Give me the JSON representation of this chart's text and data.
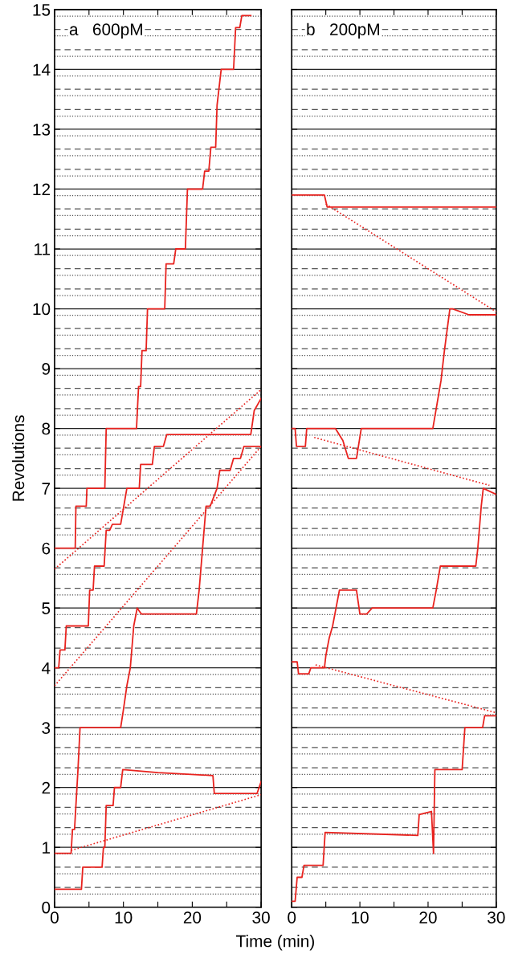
{
  "chart_data": [
    {
      "type": "line",
      "title": "a   600pM",
      "xlabel": "Time (min)",
      "ylabel": "Revolutions",
      "xlim": [
        0,
        30
      ],
      "ylim": [
        0,
        15
      ],
      "xticks": [
        0,
        {
          "value": 5,
          "label": null
        },
        10,
        {
          "value": 15,
          "label": null
        },
        20,
        {
          "value": 25,
          "label": null
        },
        30
      ],
      "yticks": [
        0,
        1,
        2,
        3,
        4,
        5,
        6,
        7,
        8,
        9,
        10,
        11,
        12,
        13,
        14,
        15
      ],
      "grid": "y",
      "line_style": "solid",
      "marker": "none",
      "series": [
        {
          "color": "#e8231f",
          "x": [
            0,
            3.0,
            3.1,
            4.6,
            4.7,
            7.3,
            7.5,
            11.9,
            12.2,
            12.5,
            12.7,
            13.3,
            13.5,
            16.0,
            16.2,
            17.3,
            17.6,
            19.0,
            19.3,
            21.5,
            21.8,
            22.4,
            22.7,
            23.4,
            23.6,
            24.2,
            26.0,
            26.3,
            26.9,
            27.2,
            28.5
          ],
          "values": [
            6.0,
            6.0,
            6.7,
            6.7,
            7.0,
            7.0,
            8.0,
            8.0,
            8.7,
            8.7,
            9.3,
            9.3,
            10.0,
            10.0,
            10.75,
            10.75,
            11.0,
            11.0,
            12.0,
            12.0,
            12.3,
            12.3,
            12.7,
            12.7,
            13.4,
            14.0,
            14.0,
            14.7,
            14.7,
            14.9,
            14.9
          ]
        },
        {
          "color": "#e8231f",
          "x": [
            0,
            0.6,
            0.8,
            1.5,
            1.7,
            4.9,
            5.1,
            5.6,
            5.8,
            6.5,
            7.2,
            7.5,
            8.0,
            8.4,
            9.6,
            10.5,
            12.3,
            12.5,
            14.2,
            14.5,
            15.8,
            16.3,
            28.5,
            29.0,
            30
          ],
          "values": [
            4.0,
            4.0,
            4.3,
            4.3,
            4.7,
            4.7,
            5.3,
            5.3,
            5.7,
            5.7,
            5.7,
            6.3,
            6.3,
            6.4,
            6.4,
            7.0,
            7.0,
            7.4,
            7.4,
            7.7,
            7.7,
            7.9,
            7.9,
            8.3,
            8.5
          ]
        },
        {
          "color": "#e8231f",
          "x": [
            0,
            2.4,
            2.6,
            2.9,
            3.1,
            3.4,
            3.7,
            5.0,
            9.6,
            10.0,
            10.5,
            11.0,
            11.5,
            12.0,
            12.6,
            13.0,
            20.6,
            21.0,
            21.5,
            22.0,
            22.6,
            23.6,
            24.0,
            25.5,
            26.0,
            27.0,
            27.5,
            30
          ],
          "values": [
            0.9,
            0.9,
            1.3,
            1.3,
            1.7,
            2.3,
            3.0,
            3.0,
            3.0,
            3.3,
            3.7,
            4.0,
            4.7,
            5.0,
            4.9,
            4.9,
            4.9,
            5.3,
            6.0,
            6.7,
            6.7,
            7.0,
            7.3,
            7.3,
            7.5,
            7.5,
            7.7,
            7.7
          ]
        },
        {
          "color": "#e8231f",
          "x": [
            0,
            3.9,
            4.1,
            6.9,
            7.1,
            7.3,
            7.5,
            8.5,
            8.7,
            9.6,
            9.9,
            15,
            23,
            23.2,
            29.4,
            30
          ],
          "values": [
            0.3,
            0.3,
            0.67,
            0.67,
            1.0,
            1.0,
            1.7,
            1.7,
            2.0,
            2.0,
            2.3,
            2.25,
            2.2,
            1.9,
            1.9,
            2.1
          ]
        },
        {
          "color": "#e8231f",
          "line_style": "dotted",
          "x": [
            0,
            30
          ],
          "values": [
            5.65,
            8.65
          ]
        },
        {
          "color": "#e8231f",
          "line_style": "dotted",
          "x": [
            0,
            30
          ],
          "values": [
            3.7,
            7.7
          ]
        },
        {
          "color": "#e8231f",
          "line_style": "dotted",
          "x": [
            2.4,
            30
          ],
          "values": [
            0.95,
            1.88
          ]
        }
      ],
      "ref_lines": [
        {
          "axis": "y",
          "value": 0.22,
          "line_style": "dotted",
          "color": "#555555"
        },
        {
          "axis": "y",
          "value": 0.33,
          "line_style": "dashed",
          "color": "#555555"
        },
        {
          "axis": "y",
          "value": 0.56,
          "line_style": "dotted",
          "color": "#555555"
        },
        {
          "axis": "y",
          "value": 0.67,
          "line_style": "dashed",
          "color": "#555555"
        },
        {
          "axis": "y",
          "value": 0.89,
          "line_style": "dotted",
          "color": "#555555"
        },
        {
          "axis": "y",
          "value": 1.22,
          "line_style": "dotted",
          "color": "#555555"
        },
        {
          "axis": "y",
          "value": 1.33,
          "line_style": "dashed",
          "color": "#555555"
        },
        {
          "axis": "y",
          "value": 1.56,
          "line_style": "dotted",
          "color": "#555555"
        },
        {
          "axis": "y",
          "value": 1.67,
          "line_style": "dashed",
          "color": "#555555"
        },
        {
          "axis": "y",
          "value": 1.89,
          "line_style": "dotted",
          "color": "#555555"
        },
        {
          "axis": "y",
          "value": 2.22,
          "line_style": "dotted",
          "color": "#555555"
        },
        {
          "axis": "y",
          "value": 2.33,
          "line_style": "dashed",
          "color": "#555555"
        },
        {
          "axis": "y",
          "value": 2.56,
          "line_style": "dotted",
          "color": "#555555"
        },
        {
          "axis": "y",
          "value": 2.67,
          "line_style": "dashed",
          "color": "#555555"
        },
        {
          "axis": "y",
          "value": 2.89,
          "line_style": "dotted",
          "color": "#555555"
        },
        {
          "axis": "y",
          "value": 3.22,
          "line_style": "dotted",
          "color": "#555555"
        },
        {
          "axis": "y",
          "value": 3.33,
          "line_style": "dashed",
          "color": "#555555"
        },
        {
          "axis": "y",
          "value": 3.56,
          "line_style": "dotted",
          "color": "#555555"
        },
        {
          "axis": "y",
          "value": 3.67,
          "line_style": "dashed",
          "color": "#555555"
        },
        {
          "axis": "y",
          "value": 3.89,
          "line_style": "dotted",
          "color": "#555555"
        },
        {
          "axis": "y",
          "value": 4.22,
          "line_style": "dotted",
          "color": "#555555"
        },
        {
          "axis": "y",
          "value": 4.33,
          "line_style": "dashed",
          "color": "#555555"
        },
        {
          "axis": "y",
          "value": 4.56,
          "line_style": "dotted",
          "color": "#555555"
        },
        {
          "axis": "y",
          "value": 4.67,
          "line_style": "dashed",
          "color": "#555555"
        },
        {
          "axis": "y",
          "value": 4.89,
          "line_style": "dotted",
          "color": "#555555"
        },
        {
          "axis": "y",
          "value": 5.22,
          "line_style": "dotted",
          "color": "#555555"
        },
        {
          "axis": "y",
          "value": 5.33,
          "line_style": "dashed",
          "color": "#555555"
        },
        {
          "axis": "y",
          "value": 5.56,
          "line_style": "dotted",
          "color": "#555555"
        },
        {
          "axis": "y",
          "value": 5.67,
          "line_style": "dashed",
          "color": "#555555"
        },
        {
          "axis": "y",
          "value": 5.89,
          "line_style": "dotted",
          "color": "#555555"
        },
        {
          "axis": "y",
          "value": 6.22,
          "line_style": "dotted",
          "color": "#555555"
        },
        {
          "axis": "y",
          "value": 6.33,
          "line_style": "dashed",
          "color": "#555555"
        },
        {
          "axis": "y",
          "value": 6.56,
          "line_style": "dotted",
          "color": "#555555"
        },
        {
          "axis": "y",
          "value": 6.67,
          "line_style": "dashed",
          "color": "#555555"
        },
        {
          "axis": "y",
          "value": 6.89,
          "line_style": "dotted",
          "color": "#555555"
        },
        {
          "axis": "y",
          "value": 7.22,
          "line_style": "dotted",
          "color": "#555555"
        },
        {
          "axis": "y",
          "value": 7.33,
          "line_style": "dashed",
          "color": "#555555"
        },
        {
          "axis": "y",
          "value": 7.56,
          "line_style": "dotted",
          "color": "#555555"
        },
        {
          "axis": "y",
          "value": 7.67,
          "line_style": "dashed",
          "color": "#555555"
        },
        {
          "axis": "y",
          "value": 7.89,
          "line_style": "dotted",
          "color": "#555555"
        },
        {
          "axis": "y",
          "value": 8.22,
          "line_style": "dotted",
          "color": "#555555"
        },
        {
          "axis": "y",
          "value": 8.33,
          "line_style": "dashed",
          "color": "#555555"
        },
        {
          "axis": "y",
          "value": 8.56,
          "line_style": "dotted",
          "color": "#555555"
        },
        {
          "axis": "y",
          "value": 8.67,
          "line_style": "dashed",
          "color": "#555555"
        },
        {
          "axis": "y",
          "value": 8.89,
          "line_style": "dotted",
          "color": "#555555"
        },
        {
          "axis": "y",
          "value": 9.22,
          "line_style": "dotted",
          "color": "#555555"
        },
        {
          "axis": "y",
          "value": 9.33,
          "line_style": "dashed",
          "color": "#555555"
        },
        {
          "axis": "y",
          "value": 9.56,
          "line_style": "dotted",
          "color": "#555555"
        },
        {
          "axis": "y",
          "value": 9.67,
          "line_style": "dashed",
          "color": "#555555"
        },
        {
          "axis": "y",
          "value": 9.89,
          "line_style": "dotted",
          "color": "#555555"
        },
        {
          "axis": "y",
          "value": 10.22,
          "line_style": "dotted",
          "color": "#555555"
        },
        {
          "axis": "y",
          "value": 10.33,
          "line_style": "dashed",
          "color": "#555555"
        },
        {
          "axis": "y",
          "value": 10.56,
          "line_style": "dotted",
          "color": "#555555"
        },
        {
          "axis": "y",
          "value": 10.67,
          "line_style": "dashed",
          "color": "#555555"
        },
        {
          "axis": "y",
          "value": 10.89,
          "line_style": "dotted",
          "color": "#555555"
        },
        {
          "axis": "y",
          "value": 11.22,
          "line_style": "dotted",
          "color": "#555555"
        },
        {
          "axis": "y",
          "value": 11.33,
          "line_style": "dashed",
          "color": "#555555"
        },
        {
          "axis": "y",
          "value": 11.56,
          "line_style": "dotted",
          "color": "#555555"
        },
        {
          "axis": "y",
          "value": 11.67,
          "line_style": "dashed",
          "color": "#555555"
        },
        {
          "axis": "y",
          "value": 11.89,
          "line_style": "dotted",
          "color": "#555555"
        },
        {
          "axis": "y",
          "value": 12.22,
          "line_style": "dotted",
          "color": "#555555"
        },
        {
          "axis": "y",
          "value": 12.33,
          "line_style": "dashed",
          "color": "#555555"
        },
        {
          "axis": "y",
          "value": 12.56,
          "line_style": "dotted",
          "color": "#555555"
        },
        {
          "axis": "y",
          "value": 12.67,
          "line_style": "dashed",
          "color": "#555555"
        },
        {
          "axis": "y",
          "value": 12.89,
          "line_style": "dotted",
          "color": "#555555"
        },
        {
          "axis": "y",
          "value": 13.22,
          "line_style": "dotted",
          "color": "#555555"
        },
        {
          "axis": "y",
          "value": 13.33,
          "line_style": "dashed",
          "color": "#555555"
        },
        {
          "axis": "y",
          "value": 13.56,
          "line_style": "dotted",
          "color": "#555555"
        },
        {
          "axis": "y",
          "value": 13.67,
          "line_style": "dashed",
          "color": "#555555"
        },
        {
          "axis": "y",
          "value": 13.89,
          "line_style": "dotted",
          "color": "#555555"
        },
        {
          "axis": "y",
          "value": 14.22,
          "line_style": "dotted",
          "color": "#555555"
        },
        {
          "axis": "y",
          "value": 14.33,
          "line_style": "dashed",
          "color": "#555555"
        },
        {
          "axis": "y",
          "value": 14.56,
          "line_style": "dotted",
          "color": "#555555"
        },
        {
          "axis": "y",
          "value": 14.67,
          "line_style": "dashed",
          "color": "#555555"
        },
        {
          "axis": "y",
          "value": 14.89,
          "line_style": "dotted",
          "color": "#555555"
        }
      ]
    },
    {
      "type": "line",
      "title": "b   200pM",
      "xlim": [
        0,
        30
      ],
      "ylim": [
        0,
        15
      ],
      "xticks": [
        0,
        {
          "value": 5,
          "label": null
        },
        10,
        {
          "value": 15,
          "label": null
        },
        20,
        {
          "value": 25,
          "label": null
        },
        30
      ],
      "yticks": [
        0,
        1,
        2,
        3,
        4,
        5,
        6,
        7,
        8,
        9,
        10,
        11,
        12,
        13,
        14,
        15
      ],
      "tick_labels": "x",
      "grid": "y",
      "line_style": "solid",
      "marker": "none",
      "series": [
        {
          "color": "#e8231f",
          "x": [
            0,
            4.8,
            5.2,
            30
          ],
          "values": [
            11.9,
            11.9,
            11.7,
            11.7
          ]
        },
        {
          "color": "#e8231f",
          "x": [
            0,
            0.5,
            0.7,
            2.0,
            2.2,
            6.4,
            7.5,
            8.3,
            9.5,
            10.2,
            20.7,
            21.9,
            22.4,
            23.2,
            23.6,
            26.0,
            26.3,
            30
          ],
          "values": [
            8.0,
            8.0,
            7.7,
            7.7,
            8.0,
            8.0,
            7.8,
            7.5,
            7.5,
            8.0,
            8.0,
            8.8,
            9.3,
            10.0,
            10.0,
            9.9,
            9.9,
            9.9
          ]
        },
        {
          "color": "#e8231f",
          "x": [
            0,
            0.8,
            1.0,
            2.5,
            2.8,
            4.8,
            5.0,
            5.5,
            6.0,
            6.5,
            7.0,
            9.5,
            10.0,
            11.0,
            11.8,
            20.7,
            21.2,
            21.8,
            27.0,
            27.3,
            27.8,
            28.1,
            30
          ],
          "values": [
            4.1,
            4.1,
            3.9,
            3.9,
            4.0,
            4.0,
            4.2,
            4.5,
            4.7,
            5.0,
            5.3,
            5.3,
            4.9,
            4.9,
            5.0,
            5.0,
            5.3,
            5.7,
            5.7,
            6.0,
            6.7,
            7.0,
            6.9
          ]
        },
        {
          "color": "#e8231f",
          "x": [
            0,
            0.5,
            0.8,
            1.5,
            1.8,
            4.6,
            4.9,
            18.5,
            18.7,
            20.5,
            20.8,
            21.0,
            25.0,
            25.4,
            28.0,
            28.3,
            30
          ],
          "values": [
            0.1,
            0.1,
            0.5,
            0.5,
            0.7,
            0.7,
            1.25,
            1.2,
            1.55,
            1.6,
            0.9,
            2.3,
            2.3,
            3.0,
            3.0,
            3.2,
            3.2
          ]
        },
        {
          "color": "#e8231f",
          "line_style": "dotted",
          "x": [
            5,
            30
          ],
          "values": [
            11.75,
            9.95
          ]
        },
        {
          "color": "#e8231f",
          "line_style": "dotted",
          "x": [
            3.3,
            29
          ],
          "values": [
            7.85,
            7.05
          ]
        },
        {
          "color": "#e8231f",
          "line_style": "dotted",
          "x": [
            3.5,
            30
          ],
          "values": [
            4.05,
            3.25
          ]
        }
      ],
      "ref_lines": [
        {
          "axis": "y",
          "value": 0.22,
          "line_style": "dotted",
          "color": "#555555"
        },
        {
          "axis": "y",
          "value": 0.33,
          "line_style": "dashed",
          "color": "#555555"
        },
        {
          "axis": "y",
          "value": 0.56,
          "line_style": "dotted",
          "color": "#555555"
        },
        {
          "axis": "y",
          "value": 0.67,
          "line_style": "dashed",
          "color": "#555555"
        },
        {
          "axis": "y",
          "value": 0.89,
          "line_style": "dotted",
          "color": "#555555"
        },
        {
          "axis": "y",
          "value": 1.22,
          "line_style": "dotted",
          "color": "#555555"
        },
        {
          "axis": "y",
          "value": 1.33,
          "line_style": "dashed",
          "color": "#555555"
        },
        {
          "axis": "y",
          "value": 1.56,
          "line_style": "dotted",
          "color": "#555555"
        },
        {
          "axis": "y",
          "value": 1.67,
          "line_style": "dashed",
          "color": "#555555"
        },
        {
          "axis": "y",
          "value": 1.89,
          "line_style": "dotted",
          "color": "#555555"
        },
        {
          "axis": "y",
          "value": 2.22,
          "line_style": "dotted",
          "color": "#555555"
        },
        {
          "axis": "y",
          "value": 2.33,
          "line_style": "dashed",
          "color": "#555555"
        },
        {
          "axis": "y",
          "value": 2.56,
          "line_style": "dotted",
          "color": "#555555"
        },
        {
          "axis": "y",
          "value": 2.67,
          "line_style": "dashed",
          "color": "#555555"
        },
        {
          "axis": "y",
          "value": 2.89,
          "line_style": "dotted",
          "color": "#555555"
        },
        {
          "axis": "y",
          "value": 3.22,
          "line_style": "dotted",
          "color": "#555555"
        },
        {
          "axis": "y",
          "value": 3.33,
          "line_style": "dashed",
          "color": "#555555"
        },
        {
          "axis": "y",
          "value": 3.56,
          "line_style": "dotted",
          "color": "#555555"
        },
        {
          "axis": "y",
          "value": 3.67,
          "line_style": "dashed",
          "color": "#555555"
        },
        {
          "axis": "y",
          "value": 3.89,
          "line_style": "dotted",
          "color": "#555555"
        },
        {
          "axis": "y",
          "value": 4.22,
          "line_style": "dotted",
          "color": "#555555"
        },
        {
          "axis": "y",
          "value": 4.33,
          "line_style": "dashed",
          "color": "#555555"
        },
        {
          "axis": "y",
          "value": 4.56,
          "line_style": "dotted",
          "color": "#555555"
        },
        {
          "axis": "y",
          "value": 4.67,
          "line_style": "dashed",
          "color": "#555555"
        },
        {
          "axis": "y",
          "value": 4.89,
          "line_style": "dotted",
          "color": "#555555"
        },
        {
          "axis": "y",
          "value": 5.22,
          "line_style": "dotted",
          "color": "#555555"
        },
        {
          "axis": "y",
          "value": 5.33,
          "line_style": "dashed",
          "color": "#555555"
        },
        {
          "axis": "y",
          "value": 5.56,
          "line_style": "dotted",
          "color": "#555555"
        },
        {
          "axis": "y",
          "value": 5.67,
          "line_style": "dashed",
          "color": "#555555"
        },
        {
          "axis": "y",
          "value": 5.89,
          "line_style": "dotted",
          "color": "#555555"
        },
        {
          "axis": "y",
          "value": 6.22,
          "line_style": "dotted",
          "color": "#555555"
        },
        {
          "axis": "y",
          "value": 6.33,
          "line_style": "dashed",
          "color": "#555555"
        },
        {
          "axis": "y",
          "value": 6.56,
          "line_style": "dotted",
          "color": "#555555"
        },
        {
          "axis": "y",
          "value": 6.67,
          "line_style": "dashed",
          "color": "#555555"
        },
        {
          "axis": "y",
          "value": 6.89,
          "line_style": "dotted",
          "color": "#555555"
        },
        {
          "axis": "y",
          "value": 7.22,
          "line_style": "dotted",
          "color": "#555555"
        },
        {
          "axis": "y",
          "value": 7.33,
          "line_style": "dashed",
          "color": "#555555"
        },
        {
          "axis": "y",
          "value": 7.56,
          "line_style": "dotted",
          "color": "#555555"
        },
        {
          "axis": "y",
          "value": 7.67,
          "line_style": "dashed",
          "color": "#555555"
        },
        {
          "axis": "y",
          "value": 7.89,
          "line_style": "dotted",
          "color": "#555555"
        },
        {
          "axis": "y",
          "value": 8.22,
          "line_style": "dotted",
          "color": "#555555"
        },
        {
          "axis": "y",
          "value": 8.33,
          "line_style": "dashed",
          "color": "#555555"
        },
        {
          "axis": "y",
          "value": 8.56,
          "line_style": "dotted",
          "color": "#555555"
        },
        {
          "axis": "y",
          "value": 8.67,
          "line_style": "dashed",
          "color": "#555555"
        },
        {
          "axis": "y",
          "value": 8.89,
          "line_style": "dotted",
          "color": "#555555"
        },
        {
          "axis": "y",
          "value": 9.22,
          "line_style": "dotted",
          "color": "#555555"
        },
        {
          "axis": "y",
          "value": 9.33,
          "line_style": "dashed",
          "color": "#555555"
        },
        {
          "axis": "y",
          "value": 9.56,
          "line_style": "dotted",
          "color": "#555555"
        },
        {
          "axis": "y",
          "value": 9.67,
          "line_style": "dashed",
          "color": "#555555"
        },
        {
          "axis": "y",
          "value": 9.89,
          "line_style": "dotted",
          "color": "#555555"
        },
        {
          "axis": "y",
          "value": 10.22,
          "line_style": "dotted",
          "color": "#555555"
        },
        {
          "axis": "y",
          "value": 10.33,
          "line_style": "dashed",
          "color": "#555555"
        },
        {
          "axis": "y",
          "value": 10.56,
          "line_style": "dotted",
          "color": "#555555"
        },
        {
          "axis": "y",
          "value": 10.67,
          "line_style": "dashed",
          "color": "#555555"
        },
        {
          "axis": "y",
          "value": 10.89,
          "line_style": "dotted",
          "color": "#555555"
        },
        {
          "axis": "y",
          "value": 11.22,
          "line_style": "dotted",
          "color": "#555555"
        },
        {
          "axis": "y",
          "value": 11.33,
          "line_style": "dashed",
          "color": "#555555"
        },
        {
          "axis": "y",
          "value": 11.56,
          "line_style": "dotted",
          "color": "#555555"
        },
        {
          "axis": "y",
          "value": 11.67,
          "line_style": "dashed",
          "color": "#555555"
        },
        {
          "axis": "y",
          "value": 11.89,
          "line_style": "dotted",
          "color": "#555555"
        },
        {
          "axis": "y",
          "value": 12.22,
          "line_style": "dotted",
          "color": "#555555"
        },
        {
          "axis": "y",
          "value": 12.33,
          "line_style": "dashed",
          "color": "#555555"
        },
        {
          "axis": "y",
          "value": 12.56,
          "line_style": "dotted",
          "color": "#555555"
        },
        {
          "axis": "y",
          "value": 12.67,
          "line_style": "dashed",
          "color": "#555555"
        },
        {
          "axis": "y",
          "value": 12.89,
          "line_style": "dotted",
          "color": "#555555"
        },
        {
          "axis": "y",
          "value": 13.22,
          "line_style": "dotted",
          "color": "#555555"
        },
        {
          "axis": "y",
          "value": 13.33,
          "line_style": "dashed",
          "color": "#555555"
        },
        {
          "axis": "y",
          "value": 13.56,
          "line_style": "dotted",
          "color": "#555555"
        },
        {
          "axis": "y",
          "value": 13.67,
          "line_style": "dashed",
          "color": "#555555"
        },
        {
          "axis": "y",
          "value": 13.89,
          "line_style": "dotted",
          "color": "#555555"
        },
        {
          "axis": "y",
          "value": 14.22,
          "line_style": "dotted",
          "color": "#555555"
        },
        {
          "axis": "y",
          "value": 14.33,
          "line_style": "dashed",
          "color": "#555555"
        },
        {
          "axis": "y",
          "value": 14.56,
          "line_style": "dotted",
          "color": "#555555"
        },
        {
          "axis": "y",
          "value": 14.67,
          "line_style": "dashed",
          "color": "#555555"
        },
        {
          "axis": "y",
          "value": 14.89,
          "line_style": "dotted",
          "color": "#555555"
        }
      ]
    }
  ]
}
